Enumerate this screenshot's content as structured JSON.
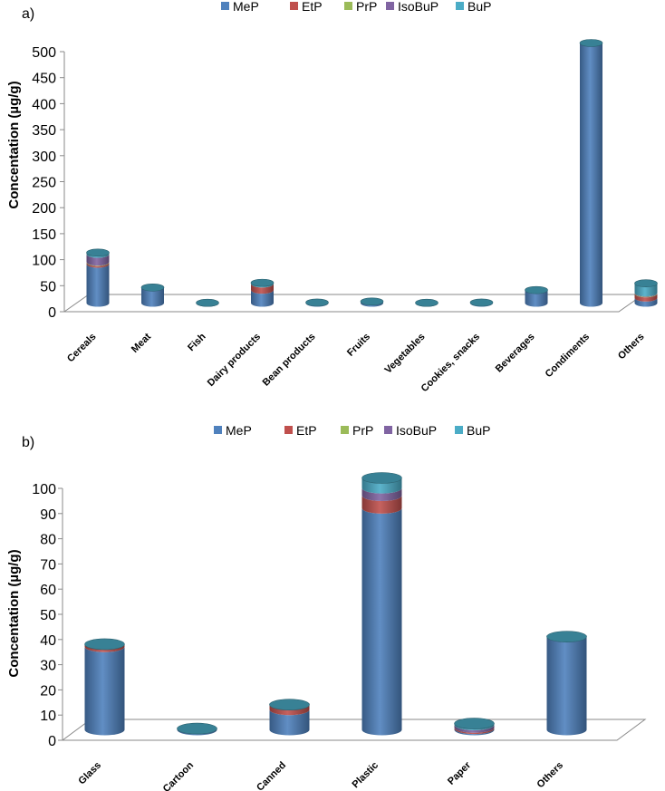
{
  "colors": {
    "MeP": "#4F81BD",
    "EtP": "#C0504D",
    "PrP": "#9BBB59",
    "IsoBuP": "#8064A2",
    "BuP": "#4BACC6"
  },
  "chart_data": [
    {
      "type": "bar",
      "panel_label": "a)",
      "ylabel": "Concentation (µg/g)",
      "ylim": [
        0,
        500
      ],
      "yticks": [
        0,
        50,
        100,
        150,
        200,
        250,
        300,
        350,
        400,
        450,
        500
      ],
      "legend_position": "top",
      "categories": [
        "Cereals",
        "Meat",
        "Fish",
        "Dairy products",
        "Bean products",
        "Fruits",
        "Vegetables",
        "Cookies, snacks",
        "Beverages",
        "Condiments",
        "Others"
      ],
      "series": [
        {
          "name": "MeP",
          "values": [
            75,
            30,
            0.5,
            25,
            1,
            3,
            0.5,
            1,
            25,
            500,
            10
          ]
        },
        {
          "name": "EtP",
          "values": [
            3,
            0,
            0,
            12,
            0,
            0,
            0,
            0,
            0,
            0,
            8
          ]
        },
        {
          "name": "PrP",
          "values": [
            1,
            0,
            0,
            0,
            0,
            0,
            0,
            0,
            0,
            0,
            1
          ]
        },
        {
          "name": "IsoBuP",
          "values": [
            15,
            0,
            0,
            0,
            0,
            0,
            0,
            0,
            0,
            0,
            1
          ]
        },
        {
          "name": "BuP",
          "values": [
            3,
            0,
            0,
            2,
            0,
            0,
            0,
            0,
            0,
            0,
            18
          ]
        }
      ]
    },
    {
      "type": "bar",
      "panel_label": "b)",
      "ylabel": "Concentation (µg/g)",
      "ylim": [
        0,
        100
      ],
      "yticks": [
        0,
        10,
        20,
        30,
        40,
        50,
        60,
        70,
        80,
        90,
        100
      ],
      "legend_position": "top",
      "categories": [
        "Glass",
        "Cartoon",
        "Canned",
        "Plastic",
        "Paper",
        "Others"
      ],
      "series": [
        {
          "name": "MeP",
          "values": [
            33,
            0.5,
            8,
            88,
            0.5,
            37
          ]
        },
        {
          "name": "EtP",
          "values": [
            1,
            0,
            2,
            5,
            0.5,
            0
          ]
        },
        {
          "name": "PrP",
          "values": [
            0,
            0,
            0,
            0,
            0,
            0
          ]
        },
        {
          "name": "IsoBuP",
          "values": [
            0,
            0,
            0,
            3,
            1,
            0
          ]
        },
        {
          "name": "BuP",
          "values": [
            0,
            0,
            0,
            4,
            0.5,
            0
          ]
        }
      ]
    }
  ]
}
